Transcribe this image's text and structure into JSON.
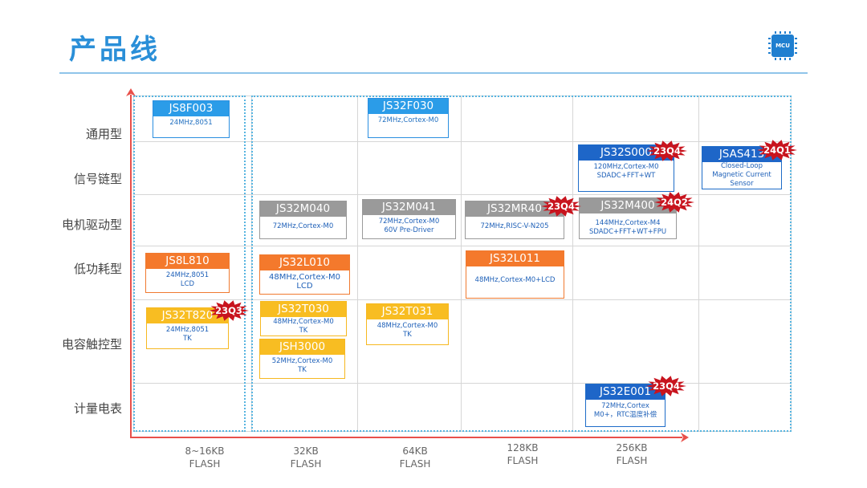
{
  "header": {
    "title": "产品线",
    "logo_text": "MCU"
  },
  "rows": [
    "通用型",
    "信号链型",
    "电机驱动型",
    "低功耗型",
    "电容触控型",
    "计量电表"
  ],
  "columns": [
    {
      "size": "8~16KB",
      "unit": "FLASH"
    },
    {
      "size": "32KB",
      "unit": "FLASH"
    },
    {
      "size": "64KB",
      "unit": "FLASH"
    },
    {
      "size": "128KB",
      "unit": "FLASH"
    },
    {
      "size": "256KB",
      "unit": "FLASH"
    }
  ],
  "chips": [
    {
      "name": "JS8F003",
      "desc": "24MHz,8051",
      "color": "blue"
    },
    {
      "name": "JS32F030",
      "desc": "72MHz,Cortex-M0",
      "color": "blue"
    },
    {
      "name": "JS32S000",
      "desc": "120MHz,Cortex-M0\nSDADC+FFT+WT",
      "color": "dblue",
      "badge": "23Q4"
    },
    {
      "name": "JSAS413",
      "desc": "Closed-Loop\nMagnetic Current\nSensor",
      "color": "dblue",
      "badge": "24Q1"
    },
    {
      "name": "JS32M040",
      "desc": "72MHz,Cortex-M0",
      "color": "gray"
    },
    {
      "name": "JS32M041",
      "desc": "72MHz,Cortex-M0\n60V Pre-Driver",
      "color": "gray"
    },
    {
      "name": "JS32MR40",
      "desc": "72MHz,RISC-V-N205",
      "color": "gray",
      "badge": "23Q4"
    },
    {
      "name": "JS32M400",
      "desc": "144MHz,Cortex-M4\nSDADC+FFT+WT+FPU",
      "color": "gray",
      "badge": "24Q2"
    },
    {
      "name": "JS8L810",
      "desc": "24MHz,8051\nLCD",
      "color": "orange"
    },
    {
      "name": "JS32L010",
      "desc": "48MHz,Cortex-M0\nLCD",
      "color": "orange"
    },
    {
      "name": "JS32L011",
      "desc": "48MHz,Cortex-M0+LCD",
      "color": "orange"
    },
    {
      "name": "JS32T820",
      "desc": "24MHz,8051\nTK",
      "color": "yellow",
      "badge": "23Q3"
    },
    {
      "name": "JS32T030",
      "desc": "48MHz,Cortex-M0\nTK",
      "color": "yellow"
    },
    {
      "name": "JSH3000",
      "desc": "52MHz,Cortex-M0\nTK",
      "color": "yellow"
    },
    {
      "name": "JS32T031",
      "desc": "48MHz,Cortex-M0\nTK",
      "color": "yellow"
    },
    {
      "name": "JS32E001",
      "desc": "72MHz,Cortex\nM0+，RTC温度补偿",
      "color": "dblue",
      "badge": "23Q4"
    }
  ]
}
